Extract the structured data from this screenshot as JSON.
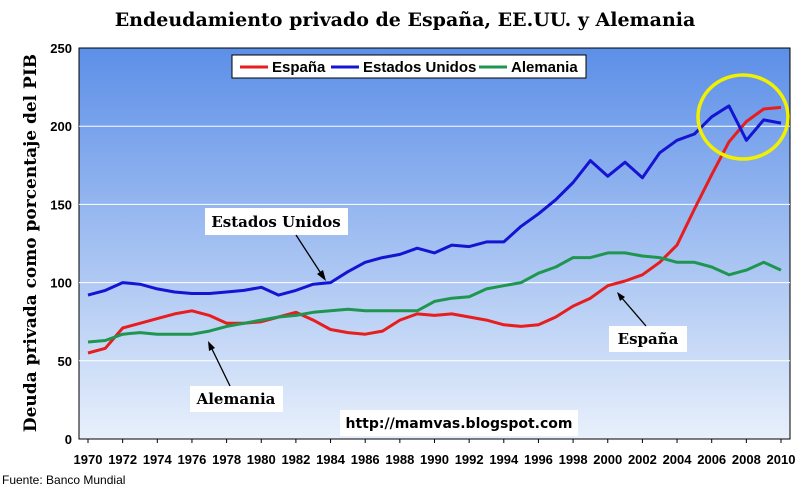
{
  "chart_data": {
    "type": "line",
    "title": "Endeudamiento privado de España, EE.UU. y Alemania",
    "ylabel": "Deuda privada como porcentaje del PIB",
    "xlabel": "",
    "x": [
      1970,
      1971,
      1972,
      1973,
      1974,
      1975,
      1976,
      1977,
      1978,
      1979,
      1980,
      1981,
      1982,
      1983,
      1984,
      1985,
      1986,
      1987,
      1988,
      1989,
      1990,
      1991,
      1992,
      1993,
      1994,
      1995,
      1996,
      1997,
      1998,
      1999,
      2000,
      2001,
      2002,
      2003,
      2004,
      2005,
      2006,
      2007,
      2008,
      2009,
      2010
    ],
    "xticks": [
      "1970",
      "1972",
      "1974",
      "1976",
      "1978",
      "1980",
      "1982",
      "1984",
      "1986",
      "1988",
      "1990",
      "1992",
      "1994",
      "1996",
      "1998",
      "2000",
      "2002",
      "2004",
      "2006",
      "2008",
      "2010"
    ],
    "yticks": [
      "0",
      "50",
      "100",
      "150",
      "200",
      "250"
    ],
    "ylim": [
      0,
      250
    ],
    "grid": true,
    "legend_position": "top",
    "series": [
      {
        "name": "España",
        "color": "#e61e1e",
        "values": [
          55,
          58,
          71,
          74,
          77,
          80,
          82,
          79,
          74,
          74,
          75,
          78,
          81,
          76,
          70,
          68,
          67,
          69,
          76,
          80,
          79,
          80,
          78,
          76,
          73,
          72,
          73,
          78,
          85,
          90,
          98,
          101,
          105,
          113,
          124,
          147,
          169,
          190,
          203,
          211,
          212
        ]
      },
      {
        "name": "Estados Unidos",
        "color": "#1414d2",
        "values": [
          92,
          95,
          100,
          99,
          96,
          94,
          93,
          93,
          94,
          95,
          97,
          92,
          95,
          99,
          100,
          107,
          113,
          116,
          118,
          122,
          119,
          124,
          123,
          126,
          126,
          136,
          144,
          153,
          164,
          178,
          168,
          177,
          167,
          183,
          191,
          195,
          206,
          213,
          191,
          204,
          202
        ]
      },
      {
        "name": "Alemania",
        "color": "#1e9650",
        "values": [
          62,
          63,
          67,
          68,
          67,
          67,
          67,
          69,
          72,
          74,
          76,
          78,
          79,
          81,
          82,
          83,
          82,
          82,
          82,
          82,
          88,
          90,
          91,
          96,
          98,
          100,
          106,
          110,
          116,
          116,
          119,
          119,
          117,
          116,
          113,
          113,
          110,
          105,
          108,
          113,
          108
        ]
      }
    ],
    "annotations": [
      {
        "text": "Estados Unidos"
      },
      {
        "text": "España"
      },
      {
        "text": "Alemania"
      },
      {
        "text": "http://mamvas.blogspot.com"
      }
    ],
    "highlight": {
      "shape": "circle",
      "color": "#f0f000",
      "years": [
        2007,
        2010
      ]
    },
    "source": "Fuente: Banco Mundial"
  },
  "colors": {
    "plot_background_top": "#5c8fe8",
    "plot_background_bottom": "#e8f0fb"
  }
}
